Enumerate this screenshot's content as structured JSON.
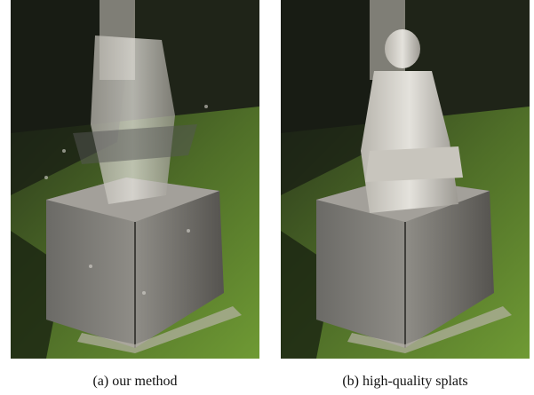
{
  "figure": {
    "panels": [
      {
        "caption": "(a) our method"
      },
      {
        "caption": "(b) high-quality splats"
      }
    ]
  }
}
